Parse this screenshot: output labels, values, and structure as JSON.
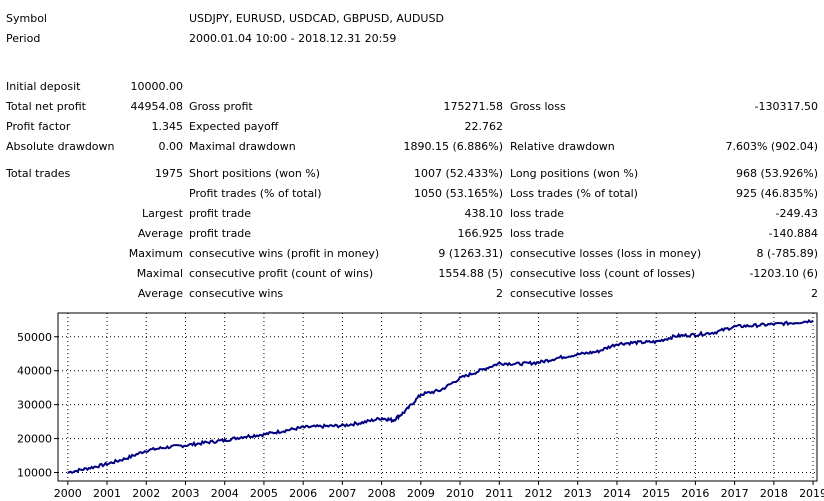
{
  "header": {
    "symbol_label": "Symbol",
    "symbol_value": "USDJPY, EURUSD, USDCAD, GBPUSD, AUDUSD",
    "period_label": "Period",
    "period_value": "2000.01.04 10:00 - 2018.12.31 20:59"
  },
  "stats": {
    "initial_deposit_label": "Initial deposit",
    "initial_deposit_value": "10000.00",
    "total_net_profit_label": "Total net profit",
    "total_net_profit_value": "44954.08",
    "gross_profit_label": "Gross profit",
    "gross_profit_value": "175271.58",
    "gross_loss_label": "Gross loss",
    "gross_loss_value": "-130317.50",
    "profit_factor_label": "Profit factor",
    "profit_factor_value": "1.345",
    "expected_payoff_label": "Expected payoff",
    "expected_payoff_value": "22.762",
    "absolute_drawdown_label": "Absolute drawdown",
    "absolute_drawdown_value": "0.00",
    "maximal_drawdown_label": "Maximal drawdown",
    "maximal_drawdown_value": "1890.15 (6.886%)",
    "relative_drawdown_label": "Relative drawdown",
    "relative_drawdown_value": "7.603% (902.04)",
    "total_trades_label": "Total trades",
    "total_trades_value": "1975",
    "short_positions_label": "Short positions (won %)",
    "short_positions_value": "1007 (52.433%)",
    "long_positions_label": "Long positions (won %)",
    "long_positions_value": "968 (53.926%)",
    "profit_trades_label": "Profit trades (% of total)",
    "profit_trades_value": "1050 (53.165%)",
    "loss_trades_label": "Loss trades (% of total)",
    "loss_trades_value": "925 (46.835%)",
    "largest_label": "Largest",
    "largest_profit_label": "profit trade",
    "largest_profit_value": "438.10",
    "largest_loss_label": "loss trade",
    "largest_loss_value": "-249.43",
    "average_label": "Average",
    "average_profit_label": "profit trade",
    "average_profit_value": "166.925",
    "average_loss_label": "loss trade",
    "average_loss_value": "-140.884",
    "maximum_label": "Maximum",
    "max_consec_wins_label": "consecutive wins (profit in money)",
    "max_consec_wins_value": "9 (1263.31)",
    "max_consec_losses_label": "consecutive losses (loss in money)",
    "max_consec_losses_value": "8 (-785.89)",
    "maximal_label": "Maximal",
    "maximal_consec_profit_label": "consecutive profit (count of wins)",
    "maximal_consec_profit_value": "1554.88 (5)",
    "maximal_consec_loss_label": "consecutive loss (count of losses)",
    "maximal_consec_loss_value": "-1203.10 (6)",
    "average2_label": "Average",
    "avg_consec_wins_label": "consecutive wins",
    "avg_consec_wins_value": "2",
    "avg_consec_losses_label": "consecutive losses",
    "avg_consec_losses_value": "2"
  },
  "chart_data": {
    "type": "line",
    "title": "",
    "xlabel": "",
    "ylabel": "",
    "grid": true,
    "line_color": "#000080",
    "xlim": [
      2000,
      2019
    ],
    "ylim": [
      8000,
      56000
    ],
    "yticks": [
      10000,
      20000,
      30000,
      40000,
      50000
    ],
    "ytick_labels": [
      "10000",
      "20000",
      "30000",
      "40000",
      "50000"
    ],
    "xtick_labels": [
      "2000",
      "2001",
      "2002",
      "2003",
      "2004",
      "2005",
      "2006",
      "2007",
      "2008",
      "2009",
      "2010",
      "2011",
      "2012",
      "2013",
      "2014",
      "2015",
      "2016",
      "2017",
      "2018",
      "2019"
    ],
    "series": [
      {
        "x": [
          2000,
          2000.5,
          2001,
          2001.5,
          2002,
          2002.5,
          2003,
          2003.5,
          2004,
          2004.5,
          2005,
          2005.5,
          2006,
          2006.5,
          2007,
          2007.5,
          2008,
          2008.3,
          2008.6,
          2009,
          2009.5,
          2010,
          2010.5,
          2011,
          2011.5,
          2012,
          2012.5,
          2013,
          2013.5,
          2014,
          2014.5,
          2015,
          2015.5,
          2016,
          2016.5,
          2017,
          2017.5,
          2018,
          2018.5,
          2019
        ],
        "y": [
          10000,
          11200,
          12500,
          14200,
          16500,
          17400,
          18000,
          18800,
          19500,
          20600,
          21200,
          22300,
          23300,
          23600,
          23800,
          24700,
          26000,
          25400,
          28000,
          33000,
          34200,
          37800,
          40000,
          42200,
          42000,
          42400,
          43800,
          44800,
          45600,
          47900,
          48300,
          48500,
          50200,
          50600,
          51300,
          53000,
          53300,
          53700,
          54100,
          54800
        ]
      }
    ]
  }
}
